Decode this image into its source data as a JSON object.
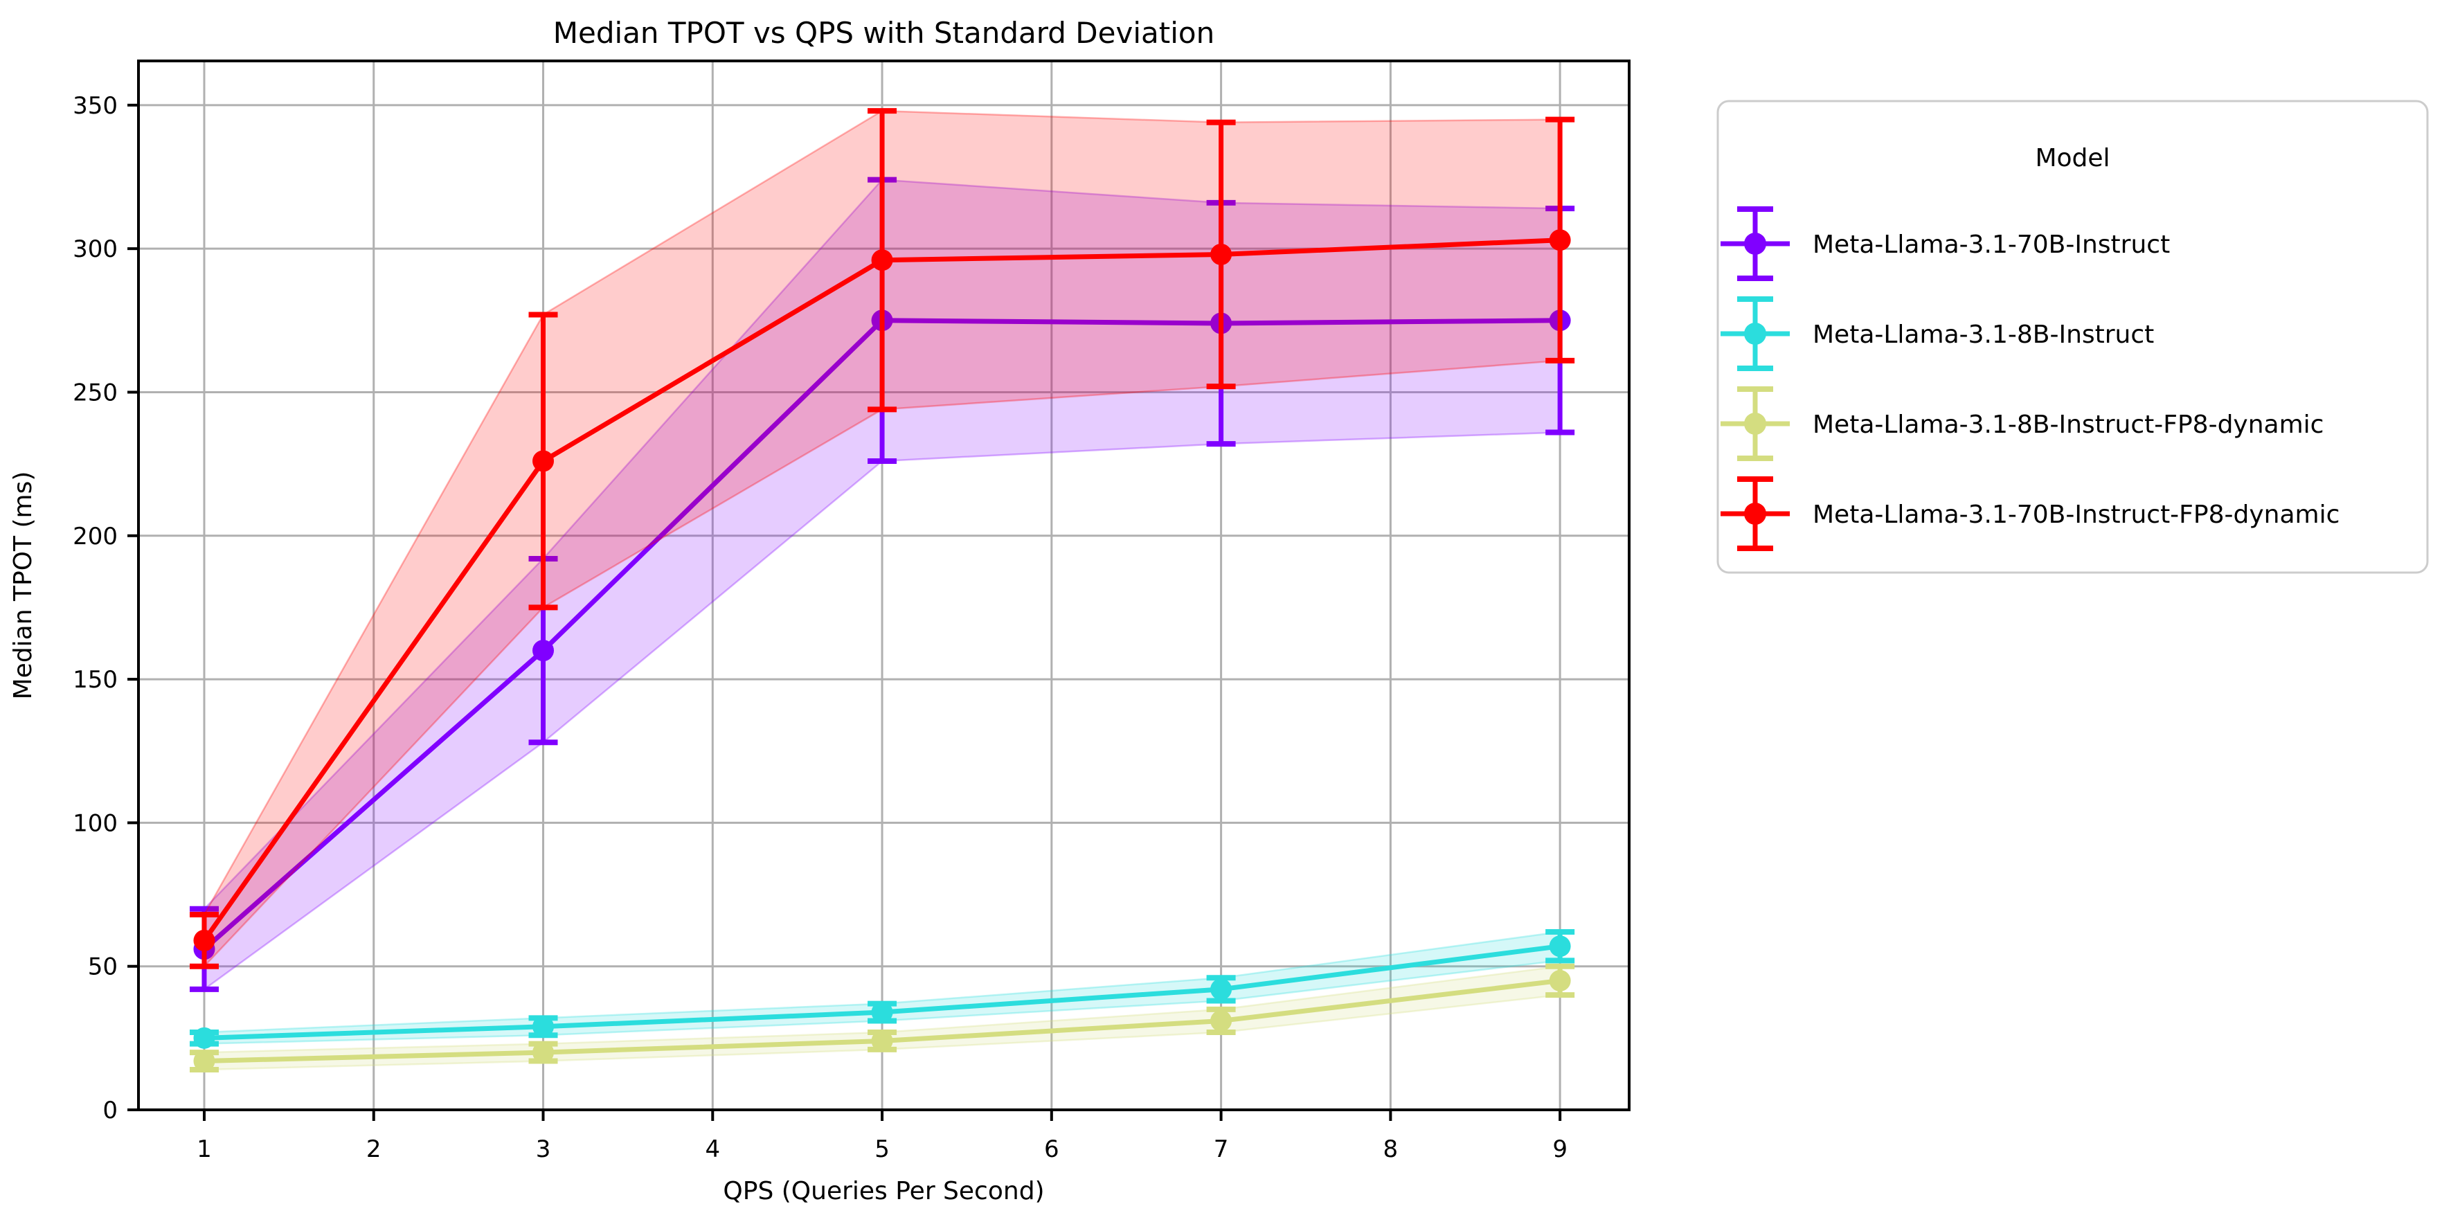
{
  "chart_data": {
    "type": "line",
    "title": "Median TPOT vs QPS with Standard Deviation",
    "xlabel": "QPS (Queries Per Second)",
    "ylabel": "Median TPOT (ms)",
    "x": [
      1,
      3,
      5,
      7,
      9
    ],
    "xticks": [
      1,
      2,
      3,
      4,
      5,
      6,
      7,
      8,
      9
    ],
    "yticks": [
      0,
      50,
      100,
      150,
      200,
      250,
      300,
      350
    ],
    "xlim": [
      0.612,
      9.408
    ],
    "ylim": [
      0,
      365.4
    ],
    "grid": true,
    "band_alpha": 0.2,
    "legend": {
      "title": "Model",
      "position": "outside-upper-right"
    },
    "series": [
      {
        "name": "Meta-Llama-3.1-70B-Instruct",
        "color": "#8000FF",
        "mean": [
          56,
          160,
          275,
          274,
          275
        ],
        "std": [
          14,
          32,
          49,
          42,
          39
        ]
      },
      {
        "name": "Meta-Llama-3.1-8B-Instruct",
        "color": "#2BDDDD",
        "mean": [
          25,
          29,
          34,
          42,
          57
        ],
        "std": [
          2,
          3,
          3,
          4,
          5
        ]
      },
      {
        "name": "Meta-Llama-3.1-8B-Instruct-FP8-dynamic",
        "color": "#D4DD80",
        "mean": [
          17,
          20,
          24,
          31,
          45
        ],
        "std": [
          3,
          3,
          3,
          4,
          5
        ]
      },
      {
        "name": "Meta-Llama-3.1-70B-Instruct-FP8-dynamic",
        "color": "#FF0000",
        "mean": [
          59,
          226,
          296,
          298,
          303
        ],
        "std": [
          9,
          51,
          52,
          46,
          42
        ]
      }
    ],
    "colors": {
      "grid": "#b0b0b0",
      "spine": "#000000",
      "legend_border": "#cccccc",
      "background": "#ffffff"
    }
  }
}
